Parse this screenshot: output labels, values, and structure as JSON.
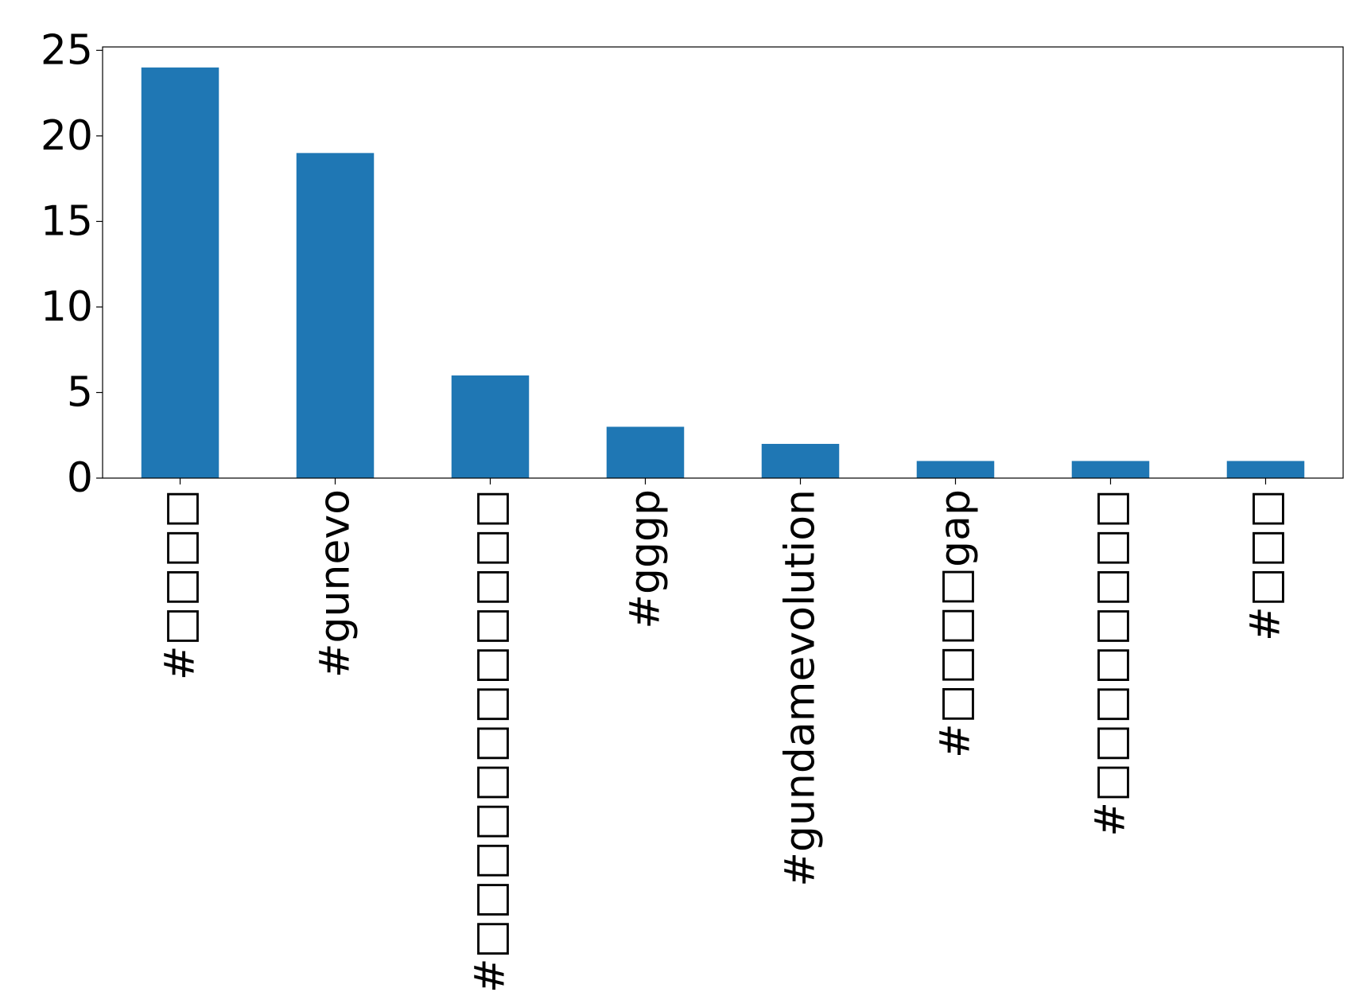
{
  "chart_data": {
    "type": "bar",
    "title": "",
    "xlabel": "",
    "ylabel": "",
    "categories": [
      "#□□□□",
      "#gunevo",
      "#□□□□□□□□□□□□",
      "#gggp",
      "#gundamevolution",
      "#□□□□gap",
      "#□□□□□□□□",
      "#□□□"
    ],
    "values": [
      24,
      19,
      6,
      3,
      2,
      1,
      1,
      1
    ],
    "ylim": [
      0,
      25.2
    ],
    "yticks": [
      0,
      5,
      10,
      15,
      20,
      25
    ],
    "ytick_labels": [
      "0",
      "5",
      "10",
      "15",
      "20",
      "25"
    ],
    "bar_color": "#1f77b4",
    "grid": false,
    "legend": "none",
    "xtick_rotation": "vertical"
  }
}
